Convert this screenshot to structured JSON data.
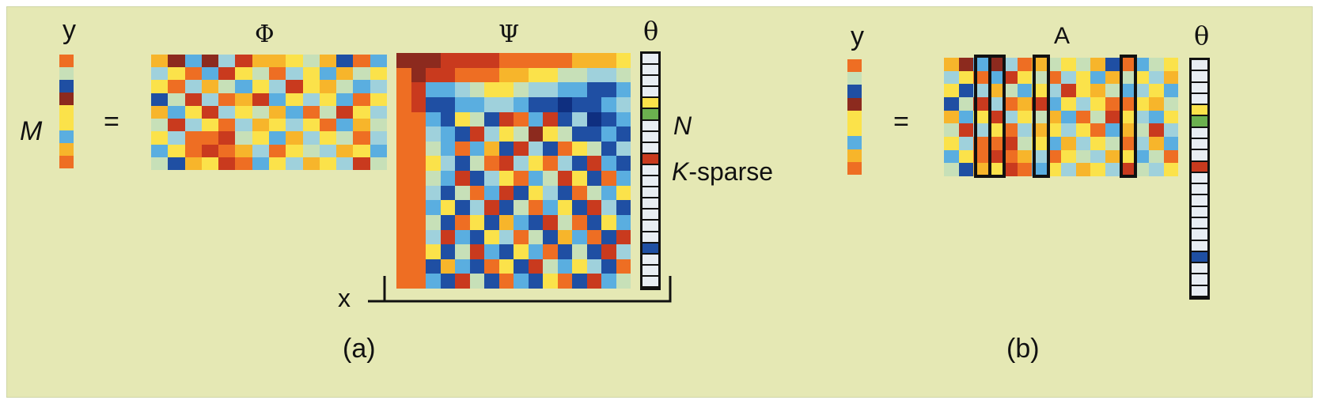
{
  "colors": {
    "background": "#e5e8b4",
    "palette": [
      "#1f4fa3",
      "#5aaee0",
      "#9fd1dc",
      "#c7e0b8",
      "#fbe24a",
      "#f7b52b",
      "#ee6e23",
      "#c93a1e",
      "#8c2a1e",
      "#6bb04f",
      "#e8edf3",
      "#0f2f80"
    ],
    "outline": "#111111"
  },
  "panel_a": {
    "y_label": "y",
    "m_label": "M",
    "equals": "=",
    "phi_label": "Φ",
    "psi_label": "Ψ",
    "theta_label": "θ",
    "n_label": "N",
    "k_label": "K",
    "sparse_suffix": "-sparse",
    "x_label": "x",
    "caption": "(a)"
  },
  "panel_b": {
    "y_label": "y",
    "equals": "=",
    "a_label": "A",
    "theta_label": "θ",
    "caption": "(b)"
  },
  "matrices": {
    "y_vector": [
      6,
      3,
      0,
      8,
      4,
      4,
      1,
      5,
      6
    ],
    "phi": [
      [
        5,
        8,
        1,
        8,
        2,
        7,
        5,
        5,
        4,
        3,
        5,
        0,
        6,
        1
      ],
      [
        2,
        4,
        6,
        1,
        7,
        4,
        3,
        6,
        2,
        4,
        1,
        5,
        3,
        4
      ],
      [
        4,
        6,
        2,
        5,
        3,
        1,
        4,
        2,
        7,
        4,
        5,
        3,
        1,
        2
      ],
      [
        0,
        3,
        7,
        2,
        6,
        5,
        7,
        1,
        4,
        2,
        4,
        1,
        6,
        4
      ],
      [
        5,
        1,
        4,
        7,
        2,
        4,
        3,
        5,
        1,
        6,
        3,
        7,
        4,
        2
      ],
      [
        3,
        7,
        2,
        4,
        6,
        2,
        5,
        4,
        2,
        4,
        6,
        1,
        5,
        3
      ],
      [
        4,
        2,
        6,
        6,
        7,
        3,
        4,
        1,
        5,
        2,
        4,
        3,
        6,
        2
      ],
      [
        1,
        4,
        6,
        7,
        6,
        5,
        2,
        6,
        4,
        3,
        2,
        5,
        4,
        1
      ],
      [
        3,
        0,
        5,
        4,
        7,
        6,
        1,
        4,
        2,
        5,
        4,
        2,
        7,
        3
      ]
    ],
    "psi": [
      [
        8,
        8,
        8,
        7,
        7,
        7,
        7,
        6,
        6,
        6,
        6,
        6,
        5,
        5,
        5,
        4
      ],
      [
        6,
        8,
        7,
        7,
        6,
        6,
        6,
        5,
        5,
        4,
        4,
        3,
        3,
        2,
        2,
        3
      ],
      [
        6,
        7,
        1,
        1,
        2,
        3,
        4,
        4,
        3,
        2,
        2,
        1,
        1,
        0,
        0,
        1
      ],
      [
        6,
        7,
        0,
        0,
        1,
        1,
        2,
        2,
        1,
        0,
        0,
        11,
        0,
        0,
        1,
        2
      ],
      [
        6,
        6,
        1,
        0,
        4,
        3,
        0,
        7,
        6,
        1,
        7,
        0,
        2,
        11,
        0,
        1
      ],
      [
        6,
        6,
        2,
        1,
        0,
        7,
        2,
        4,
        3,
        8,
        4,
        3,
        0,
        0,
        1,
        0
      ],
      [
        6,
        6,
        3,
        1,
        6,
        1,
        5,
        0,
        7,
        2,
        0,
        6,
        4,
        3,
        0,
        2
      ],
      [
        6,
        6,
        4,
        2,
        0,
        3,
        6,
        7,
        2,
        4,
        6,
        2,
        0,
        7,
        1,
        0
      ],
      [
        6,
        6,
        3,
        1,
        7,
        0,
        2,
        4,
        6,
        1,
        3,
        7,
        4,
        0,
        6,
        1
      ],
      [
        6,
        6,
        2,
        0,
        3,
        6,
        1,
        7,
        0,
        4,
        2,
        0,
        6,
        3,
        1,
        4
      ],
      [
        6,
        6,
        1,
        4,
        0,
        2,
        7,
        0,
        3,
        6,
        1,
        4,
        0,
        7,
        2,
        0
      ],
      [
        6,
        6,
        3,
        0,
        6,
        4,
        0,
        5,
        1,
        0,
        7,
        3,
        6,
        0,
        4,
        1
      ],
      [
        6,
        6,
        2,
        7,
        1,
        0,
        4,
        2,
        6,
        3,
        0,
        5,
        1,
        6,
        0,
        7
      ],
      [
        6,
        6,
        4,
        0,
        3,
        7,
        1,
        0,
        4,
        1,
        6,
        0,
        3,
        0,
        7,
        2
      ],
      [
        6,
        6,
        0,
        5,
        1,
        0,
        6,
        4,
        0,
        7,
        3,
        1,
        4,
        2,
        0,
        6
      ],
      [
        6,
        6,
        1,
        0,
        7,
        3,
        0,
        6,
        1,
        0,
        4,
        6,
        0,
        7,
        1,
        3
      ]
    ],
    "theta": [
      10,
      10,
      10,
      10,
      4,
      9,
      10,
      10,
      10,
      7,
      10,
      10,
      10,
      10,
      10,
      10,
      10,
      0,
      10,
      10,
      10
    ],
    "a_matrix": [
      [
        5,
        8,
        1,
        8,
        2,
        6,
        5,
        3,
        4,
        3,
        5,
        0,
        6,
        1,
        3,
        4
      ],
      [
        2,
        4,
        6,
        1,
        7,
        4,
        3,
        6,
        2,
        4,
        1,
        5,
        3,
        4,
        2,
        5
      ],
      [
        4,
        0,
        2,
        5,
        3,
        1,
        4,
        2,
        7,
        4,
        5,
        3,
        1,
        2,
        4,
        1
      ],
      [
        0,
        3,
        7,
        2,
        6,
        5,
        7,
        1,
        4,
        2,
        4,
        6,
        6,
        4,
        5,
        3
      ],
      [
        5,
        1,
        4,
        7,
        2,
        4,
        3,
        5,
        1,
        6,
        3,
        7,
        4,
        2,
        1,
        4
      ],
      [
        3,
        7,
        2,
        4,
        6,
        2,
        5,
        4,
        2,
        4,
        6,
        1,
        5,
        3,
        7,
        2
      ],
      [
        4,
        2,
        6,
        6,
        7,
        3,
        4,
        1,
        5,
        2,
        4,
        3,
        6,
        2,
        5,
        1
      ],
      [
        1,
        4,
        6,
        7,
        6,
        5,
        2,
        6,
        4,
        3,
        2,
        5,
        4,
        1,
        3,
        6
      ],
      [
        3,
        0,
        5,
        4,
        7,
        6,
        1,
        4,
        2,
        5,
        4,
        2,
        7,
        3,
        2,
        4
      ]
    ]
  }
}
